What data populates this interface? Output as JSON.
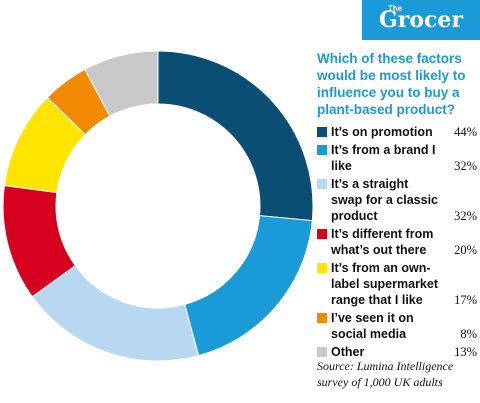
{
  "brand": {
    "name": "Grocer",
    "prefix": "The"
  },
  "chart_data": {
    "type": "pie",
    "donut": true,
    "title": "Which of these factors would be most likely to influence you to buy a plant-based product?",
    "source": "Source: Lumina Intelligence survey of 1,000 UK adults",
    "series": [
      {
        "name": "It’s on promotion",
        "value": 44,
        "label": "44%",
        "color": "#0a4f73"
      },
      {
        "name": "It’s from a brand I like",
        "value": 32,
        "label": "32%",
        "color": "#1a9ad6"
      },
      {
        "name": "It’s a straight swap for a classic product",
        "value": 32,
        "label": "32%",
        "color": "#b8d8f2"
      },
      {
        "name": "It’s different from what’s out there",
        "value": 20,
        "label": "20%",
        "color": "#d7001e"
      },
      {
        "name": "It’s from an own-label supermarket range that I like",
        "value": 17,
        "label": "17%",
        "color": "#ffe400"
      },
      {
        "name": "I’ve seen it on social media",
        "value": 8,
        "label": "8%",
        "color": "#f18a00"
      },
      {
        "name": "Other",
        "value": 13,
        "label": "13%",
        "color": "#c8c8c8"
      }
    ]
  }
}
